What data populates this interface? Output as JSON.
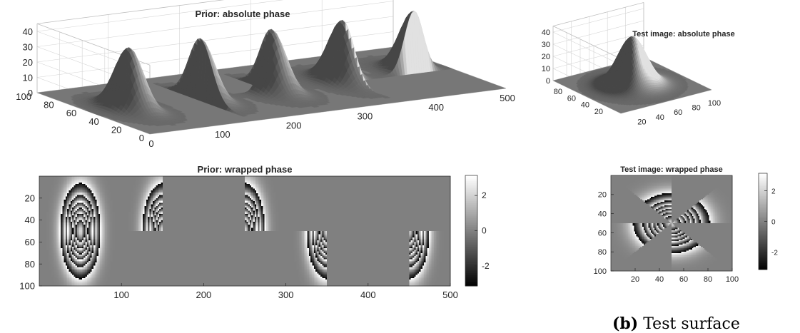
{
  "chart_data": [
    {
      "type": "surface",
      "title": "Prior: absolute phase",
      "x_ticks": [
        "0",
        "100",
        "200",
        "300",
        "400",
        "500"
      ],
      "y_ticks": [
        "0",
        "20",
        "40",
        "60",
        "80",
        "100"
      ],
      "z_ticks": [
        "0",
        "10",
        "20",
        "30",
        "40"
      ],
      "xlim": [
        0,
        500
      ],
      "ylim": [
        0,
        100
      ],
      "zlim": [
        0,
        45
      ],
      "surface": "five Gaussian phase bumps, peak ≈ 40, centered at x = 50, 150, 250, 350, 450; first full, others with halves/quadrants removed",
      "peaks": [
        {
          "x": 50,
          "y": 50,
          "z": 40
        },
        {
          "x": 150,
          "y": 50,
          "z": 40
        },
        {
          "x": 250,
          "y": 50,
          "z": 40
        },
        {
          "x": 350,
          "y": 50,
          "z": 40
        },
        {
          "x": 450,
          "y": 50,
          "z": 40
        }
      ],
      "grid": true
    },
    {
      "type": "heatmap",
      "title": "Prior: wrapped phase",
      "x_ticks": [
        "100",
        "200",
        "300",
        "400",
        "500"
      ],
      "y_ticks": [
        "20",
        "40",
        "60",
        "80",
        "100"
      ],
      "colorbar_ticks": [
        "2",
        "0",
        "-2"
      ],
      "clim": [
        -3.14,
        3.14
      ],
      "xlim": [
        1,
        500
      ],
      "ylim": [
        1,
        100
      ],
      "colormap": "gray"
    },
    {
      "type": "surface",
      "title": "Test image: absolute phase",
      "x_ticks": [
        "20",
        "40",
        "60",
        "80",
        "100"
      ],
      "y_ticks": [
        "20",
        "40",
        "60",
        "80"
      ],
      "z_ticks": [
        "0",
        "10",
        "20",
        "30",
        "40"
      ],
      "xlim": [
        0,
        100
      ],
      "ylim": [
        0,
        100
      ],
      "zlim": [
        0,
        45
      ],
      "peaks": [
        {
          "x": 50,
          "y": 50,
          "z": 40
        }
      ],
      "grid": true
    },
    {
      "type": "heatmap",
      "title": "Test image: wrapped phase",
      "x_ticks": [
        "20",
        "40",
        "60",
        "80",
        "100"
      ],
      "y_ticks": [
        "20",
        "40",
        "60",
        "80",
        "100"
      ],
      "colorbar_ticks": [
        "2",
        "0",
        "-2"
      ],
      "clim": [
        -3.14,
        3.14
      ],
      "xlim": [
        1,
        100
      ],
      "ylim": [
        1,
        100
      ],
      "colormap": "gray"
    }
  ],
  "caption": {
    "label": "(b)",
    "text": "Test surface"
  }
}
